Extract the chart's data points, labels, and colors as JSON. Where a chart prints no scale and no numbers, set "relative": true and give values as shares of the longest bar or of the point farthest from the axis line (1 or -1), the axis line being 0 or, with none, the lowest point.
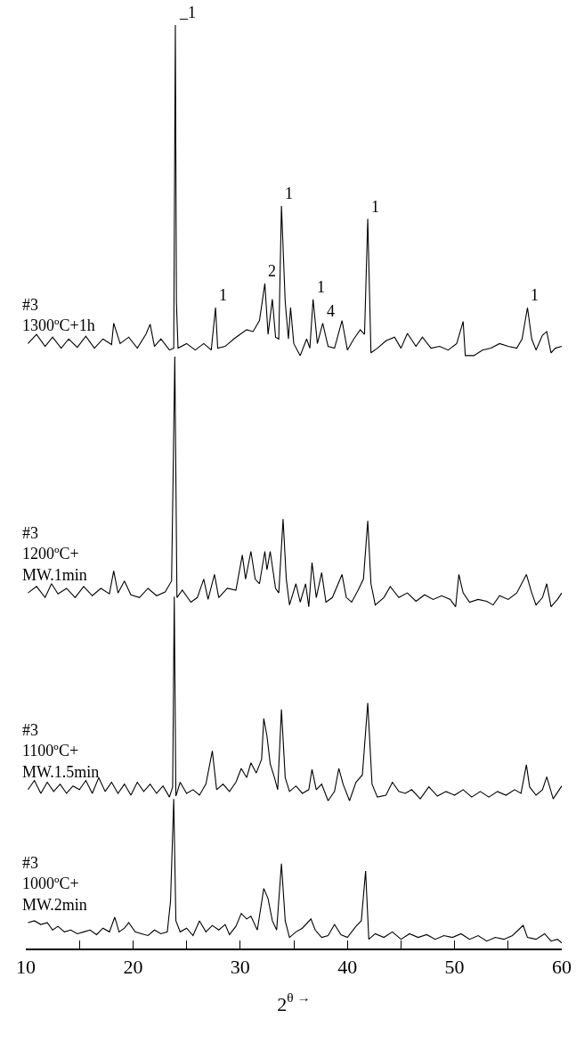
{
  "chart_data": {
    "type": "line",
    "relative": true,
    "xlabel": "2$^{θ →}$",
    "xlim": [
      10,
      60
    ],
    "xticks": [
      10,
      {
        "value": 15,
        "label": null
      },
      20,
      {
        "value": 25,
        "label": null
      },
      30,
      {
        "value": 35,
        "label": null
      },
      40,
      {
        "value": 45,
        "label": null
      },
      50,
      {
        "value": 55,
        "label": null
      },
      60
    ],
    "grid": false,
    "legend": false,
    "marker": "none",
    "line_style": "solid",
    "series": [
      {
        "name": "#3\n1300ºC+1h",
        "color": "#000000",
        "x": [
          10.2,
          11,
          11.8,
          12.5,
          13.3,
          14,
          14.8,
          15.6,
          16.4,
          17.2,
          18,
          18.2,
          18.8,
          19.6,
          20.4,
          21.2,
          21.6,
          22,
          22.6,
          23.4,
          23.8,
          23.95,
          24.05,
          24.2,
          25,
          25.8,
          26.6,
          27.3,
          27.7,
          27.9,
          28.6,
          29.4,
          30,
          30.6,
          31.2,
          31.8,
          32.3,
          32.6,
          33,
          33.3,
          33.6,
          33.85,
          34.2,
          34.5,
          34.7,
          35,
          35.6,
          36.2,
          36.5,
          36.8,
          37.2,
          37.7,
          38.2,
          38.8,
          39.5,
          40,
          40.6,
          41.2,
          41.6,
          41.9,
          42.2,
          42.8,
          43.6,
          44.4,
          45,
          45.6,
          46.4,
          47,
          47.8,
          48.6,
          49.4,
          50.2,
          50.8,
          51,
          51.8,
          52.6,
          53.4,
          54.2,
          55,
          55.8,
          56.3,
          56.8,
          57.2,
          57.6,
          58.2,
          58.6,
          59,
          59.4,
          60
        ],
        "values": [
          0.655,
          0.665,
          0.652,
          0.662,
          0.65,
          0.66,
          0.651,
          0.663,
          0.65,
          0.66,
          0.654,
          0.677,
          0.655,
          0.662,
          0.65,
          0.665,
          0.676,
          0.652,
          0.66,
          0.648,
          0.65,
          1,
          0.7,
          0.65,
          0.655,
          0.648,
          0.655,
          0.648,
          0.694,
          0.65,
          0.652,
          0.66,
          0.665,
          0.67,
          0.668,
          0.68,
          0.72,
          0.665,
          0.703,
          0.662,
          0.66,
          0.804,
          0.7,
          0.66,
          0.694,
          0.655,
          0.642,
          0.66,
          0.65,
          0.703,
          0.655,
          0.677,
          0.652,
          0.65,
          0.68,
          0.648,
          0.66,
          0.67,
          0.665,
          0.79,
          0.645,
          0.65,
          0.658,
          0.662,
          0.65,
          0.666,
          0.652,
          0.662,
          0.65,
          0.652,
          0.648,
          0.655,
          0.679,
          0.642,
          0.642,
          0.648,
          0.65,
          0.655,
          0.652,
          0.65,
          0.66,
          0.694,
          0.66,
          0.648,
          0.664,
          0.668,
          0.645,
          0.65,
          0.652
        ]
      },
      {
        "name": "#3\n1200ºC+\nMW.1min",
        "color": "#000000",
        "x": [
          10.2,
          11,
          11.8,
          12.4,
          13,
          13.8,
          14.6,
          15.4,
          16.2,
          17,
          17.8,
          18.2,
          18.6,
          19.2,
          19.8,
          20.6,
          21.4,
          22.2,
          23,
          23.6,
          23.9,
          24.1,
          24.6,
          25.4,
          26,
          26.6,
          27,
          27.6,
          28,
          28.8,
          29.6,
          30.2,
          30.5,
          31,
          31.4,
          31.8,
          32.3,
          32.5,
          32.8,
          33.3,
          33.6,
          34,
          34.3,
          34.6,
          35.2,
          35.6,
          36.1,
          36.4,
          36.7,
          37.1,
          37.6,
          38,
          38.6,
          39.5,
          39.9,
          40.4,
          41,
          41.5,
          41.9,
          42.2,
          42.6,
          43.4,
          44,
          44.8,
          45.6,
          46.4,
          47.2,
          48,
          48.8,
          49.6,
          50.1,
          50.4,
          50.8,
          51.4,
          52.2,
          53,
          53.6,
          54.2,
          55,
          55.8,
          56.7,
          57.2,
          57.6,
          58.2,
          58.6,
          59,
          59.6,
          60
        ],
        "values": [
          0.385,
          0.392,
          0.38,
          0.395,
          0.384,
          0.39,
          0.38,
          0.392,
          0.382,
          0.39,
          0.384,
          0.409,
          0.385,
          0.398,
          0.383,
          0.38,
          0.39,
          0.382,
          0.386,
          0.398,
          0.641,
          0.38,
          0.388,
          0.375,
          0.38,
          0.4,
          0.378,
          0.405,
          0.38,
          0.39,
          0.388,
          0.426,
          0.4,
          0.43,
          0.4,
          0.395,
          0.43,
          0.41,
          0.43,
          0.39,
          0.385,
          0.465,
          0.4,
          0.372,
          0.395,
          0.375,
          0.395,
          0.37,
          0.418,
          0.38,
          0.407,
          0.375,
          0.38,
          0.405,
          0.38,
          0.375,
          0.388,
          0.4,
          0.463,
          0.395,
          0.372,
          0.38,
          0.392,
          0.38,
          0.385,
          0.376,
          0.383,
          0.378,
          0.382,
          0.378,
          0.37,
          0.405,
          0.385,
          0.375,
          0.378,
          0.376,
          0.372,
          0.382,
          0.378,
          0.385,
          0.405,
          0.385,
          0.372,
          0.38,
          0.395,
          0.37,
          0.378,
          0.385
        ]
      },
      {
        "name": "#3\n1100ºC+\nMW.1.5min",
        "color": "#000000",
        "x": [
          10.2,
          10.8,
          11.4,
          12,
          12.6,
          13.2,
          13.8,
          14.4,
          15,
          15.6,
          16.2,
          16.8,
          17.4,
          18,
          18.6,
          19.2,
          19.8,
          20.4,
          21,
          21.6,
          22.2,
          22.8,
          23.4,
          23.7,
          23.85,
          24,
          24.4,
          25,
          25.6,
          26.2,
          26.8,
          27.4,
          27.8,
          28.4,
          29,
          29.6,
          30.1,
          30.6,
          31,
          31.5,
          32,
          32.2,
          32.5,
          32.8,
          33.2,
          33.5,
          33.85,
          34.2,
          34.6,
          35.2,
          35.8,
          36.4,
          36.7,
          37.1,
          37.6,
          38.2,
          38.8,
          39.2,
          39.6,
          40.2,
          40.8,
          41.4,
          41.9,
          42.3,
          42.8,
          43.6,
          44.2,
          44.8,
          45.4,
          46,
          46.8,
          47.6,
          48.4,
          49.2,
          50,
          50.8,
          51.6,
          52.4,
          53.2,
          54,
          54.8,
          55.6,
          56.2,
          56.7,
          57,
          57.6,
          58.2,
          58.6,
          59.2,
          60
        ],
        "values": [
          0.172,
          0.182,
          0.168,
          0.18,
          0.17,
          0.178,
          0.168,
          0.176,
          0.172,
          0.182,
          0.168,
          0.185,
          0.17,
          0.18,
          0.168,
          0.178,
          0.166,
          0.18,
          0.17,
          0.178,
          0.168,
          0.176,
          0.164,
          0.175,
          0.381,
          0.165,
          0.18,
          0.168,
          0.172,
          0.166,
          0.178,
          0.214,
          0.172,
          0.178,
          0.17,
          0.18,
          0.195,
          0.185,
          0.201,
          0.19,
          0.205,
          0.249,
          0.23,
          0.2,
          0.185,
          0.172,
          0.259,
          0.185,
          0.17,
          0.176,
          0.168,
          0.172,
          0.194,
          0.172,
          0.178,
          0.16,
          0.17,
          0.195,
          0.178,
          0.16,
          0.18,
          0.188,
          0.266,
          0.178,
          0.164,
          0.166,
          0.18,
          0.17,
          0.168,
          0.172,
          0.162,
          0.175,
          0.165,
          0.17,
          0.166,
          0.172,
          0.164,
          0.17,
          0.164,
          0.17,
          0.166,
          0.172,
          0.168,
          0.199,
          0.175,
          0.166,
          0.172,
          0.186,
          0.162,
          0.176
        ]
      },
      {
        "name": "#3\n1000ºC+\nMW.2min",
        "color": "#000000",
        "x": [
          10.2,
          10.8,
          11.4,
          12,
          12.5,
          13,
          13.6,
          14.2,
          14.8,
          15.4,
          16,
          16.6,
          17.2,
          17.8,
          18.3,
          18.7,
          19.2,
          19.6,
          20.2,
          20.8,
          21.4,
          22,
          22.6,
          23.2,
          23.5,
          23.8,
          24,
          24.4,
          25,
          25.6,
          26.2,
          26.8,
          27.4,
          28,
          28.6,
          29,
          29.6,
          30.1,
          30.6,
          31,
          31.6,
          32.2,
          32.6,
          33,
          33.4,
          33.85,
          34.2,
          34.6,
          35.2,
          35.8,
          36.6,
          37,
          37.6,
          38.2,
          38.8,
          39.4,
          40,
          40.8,
          41.3,
          41.7,
          42,
          42.6,
          43.4,
          44.2,
          45,
          45.8,
          46.6,
          47.4,
          48.2,
          49,
          49.8,
          50.6,
          51.4,
          52.2,
          53,
          53.8,
          54.6,
          55.4,
          56.4,
          56.8,
          57.6,
          58.4,
          59,
          59.6,
          60
        ],
        "values": [
          0.028,
          0.03,
          0.026,
          0.028,
          0.02,
          0.024,
          0.018,
          0.02,
          0.016,
          0.018,
          0.02,
          0.015,
          0.022,
          0.018,
          0.034,
          0.018,
          0.022,
          0.028,
          0.018,
          0.016,
          0.014,
          0.02,
          0.016,
          0.018,
          0.051,
          0.162,
          0.03,
          0.018,
          0.022,
          0.014,
          0.03,
          0.018,
          0.025,
          0.02,
          0.026,
          0.015,
          0.024,
          0.038,
          0.032,
          0.035,
          0.02,
          0.065,
          0.054,
          0.03,
          0.02,
          0.092,
          0.03,
          0.012,
          0.018,
          0.022,
          0.032,
          0.02,
          0.012,
          0.014,
          0.026,
          0.015,
          0.012,
          0.024,
          0.03,
          0.084,
          0.01,
          0.016,
          0.012,
          0.018,
          0.01,
          0.016,
          0.012,
          0.015,
          0.01,
          0.014,
          0.012,
          0.016,
          0.01,
          0.014,
          0.008,
          0.012,
          0.01,
          0.014,
          0.025,
          0.012,
          0.01,
          0.016,
          0.008,
          0.01,
          0.006
        ]
      }
    ],
    "annotations": [
      {
        "text": "_1",
        "x": 23.95,
        "y": 1
      },
      {
        "text": "1",
        "x": 27.7,
        "y": 0.694
      },
      {
        "text": "2",
        "x": 32.3,
        "y": 0.72
      },
      {
        "text": "1",
        "x": 33.85,
        "y": 0.804
      },
      {
        "text": "1",
        "x": 36.8,
        "y": 0.703
      },
      {
        "text": "4",
        "x": 37.7,
        "y": 0.677
      },
      {
        "text": "1",
        "x": 41.9,
        "y": 0.79
      },
      {
        "text": "1",
        "x": 56.8,
        "y": 0.694
      }
    ]
  }
}
